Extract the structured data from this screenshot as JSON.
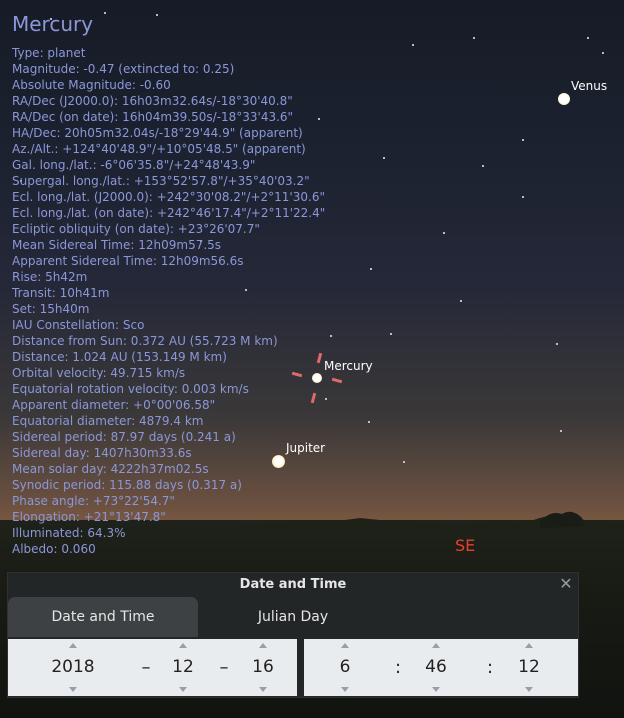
{
  "sky": {
    "venus_label": "Venus",
    "mercury_label": "Mercury",
    "jupiter_label": "Jupiter",
    "cardinal": "SE"
  },
  "info": {
    "title": "Mercury",
    "lines": [
      "Type: planet",
      "Magnitude: -0.47 (extincted to: 0.25)",
      "Absolute Magnitude: -0.60",
      "RA/Dec (J2000.0): 16h03m32.64s/-18°30'40.8\"",
      "RA/Dec (on date): 16h04m39.50s/-18°33'43.6\"",
      "HA/Dec: 20h05m32.04s/-18°29'44.9\" (apparent)",
      "Az./Alt.: +124°40'48.9\"/+10°05'48.5\" (apparent)",
      "Gal. long./lat.: -6°06'35.8\"/+24°48'43.9\"",
      "Supergal. long./lat.: +153°52'57.8\"/+35°40'03.2\"",
      "Ecl. long./lat. (J2000.0): +242°30'08.2\"/+2°11'30.6\"",
      "Ecl. long./lat. (on date): +242°46'17.4\"/+2°11'22.4\"",
      "Ecliptic obliquity (on date): +23°26'07.7\"",
      "Mean Sidereal Time: 12h09m57.5s",
      "Apparent Sidereal Time: 12h09m56.6s",
      "Rise: 5h42m",
      "Transit: 10h41m",
      "Set: 15h40m",
      "IAU Constellation: Sco",
      "Distance from Sun: 0.372 AU (55.723 M km)",
      "Distance: 1.024 AU (153.149 M km)",
      "Orbital velocity: 49.715 km/s",
      "Equatorial rotation velocity: 0.003 km/s",
      "Apparent diameter: +0°00'06.58\"",
      "Equatorial diameter: 4879.4 km",
      "Sidereal period: 87.97 days (0.241 a)",
      "Sidereal day: 1407h30m33.6s",
      "Mean solar day: 4222h37m02.5s",
      "Synodic period: 115.88 days (0.317 a)",
      "Phase angle: +73°22'54.7\"",
      "Elongation: +21°13'47.8\"",
      "Illuminated: 64.3%",
      "Albedo: 0.060"
    ]
  },
  "dialog": {
    "title": "Date and Time",
    "close_icon": "close-icon",
    "tabs": [
      {
        "label": "Date and Time",
        "active": true
      },
      {
        "label": "Julian Day",
        "active": false
      }
    ],
    "date": {
      "year": "2018",
      "month": "12",
      "day": "16",
      "sep": "–"
    },
    "time": {
      "hour": "6",
      "minute": "46",
      "second": "12",
      "sep": ":"
    }
  }
}
